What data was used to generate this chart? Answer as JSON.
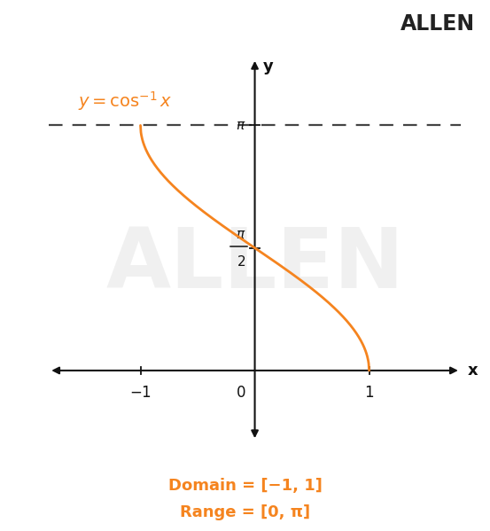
{
  "title": "ALLEN",
  "curve_color": "#F5841F",
  "background_color": "#ffffff",
  "watermark_text": "ALLEN",
  "watermark_color": "#dddddd",
  "dashed_line_color": "#444444",
  "axis_color": "#111111",
  "label_color": "#F5841F",
  "tick_color": "#111111",
  "x_label": "x",
  "y_label": "y",
  "xlim": [
    -1.8,
    1.8
  ],
  "ylim": [
    -0.9,
    4.0
  ],
  "figsize": [
    5.53,
    5.99
  ],
  "dpi": 100,
  "domain_text": "Domain = [−1, 1]",
  "range_text": "Range = [0, π]"
}
